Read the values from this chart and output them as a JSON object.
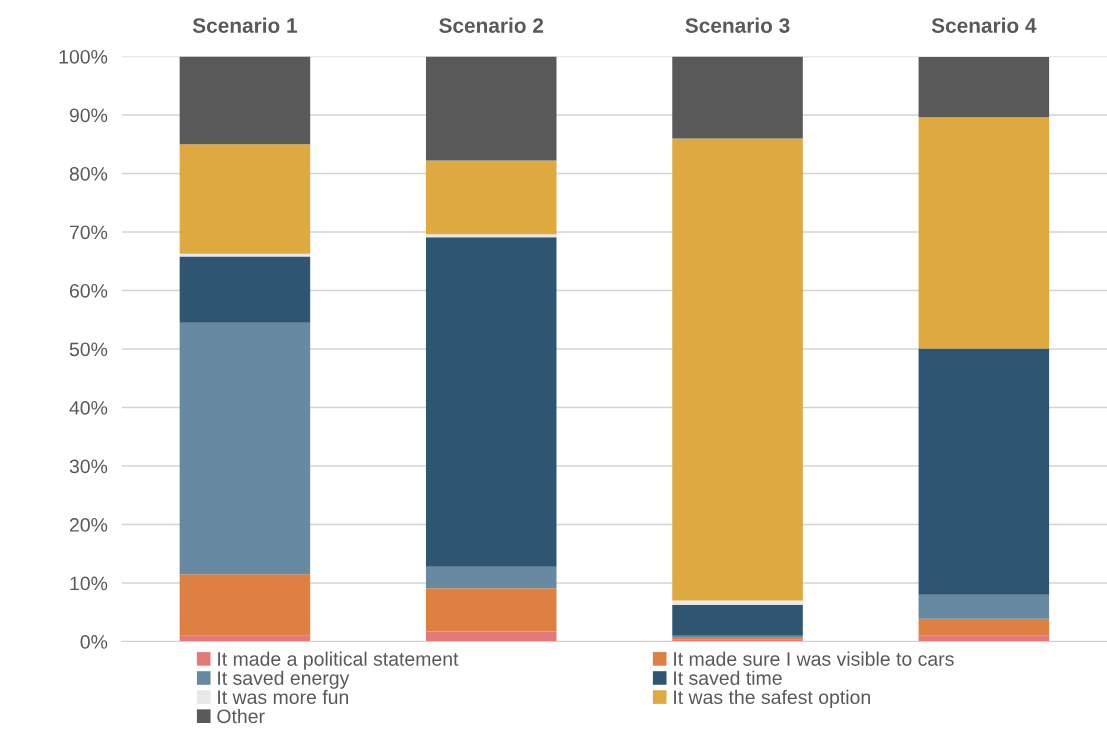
{
  "chart_data": {
    "type": "bar",
    "stacked": true,
    "categories": [
      "Scenario 1",
      "Scenario 2",
      "Scenario 3",
      "Scenario 4"
    ],
    "series": [
      {
        "name": "It made a political statement",
        "color": "#e27a7a",
        "values": [
          1.0,
          1.7,
          0.3,
          1.0
        ]
      },
      {
        "name": "It made sure I was visible to cars",
        "color": "#dd8042",
        "values": [
          10.5,
          7.4,
          0.5,
          2.9
        ]
      },
      {
        "name": "It saved energy",
        "color": "#6889a2",
        "values": [
          43.0,
          3.7,
          0.2,
          4.1
        ]
      },
      {
        "name": "It saved time",
        "color": "#2e5672",
        "values": [
          11.3,
          56.3,
          5.3,
          42.1
        ]
      },
      {
        "name": "It was more fun",
        "color": "#e8e8e8",
        "values": [
          0.5,
          0.5,
          0.7,
          null
        ]
      },
      {
        "name": "It was the safest option",
        "color": "#dea93e",
        "values": [
          18.7,
          12.6,
          79.0,
          39.5
        ]
      },
      {
        "name": "Other",
        "color": "#595959",
        "values": [
          15.0,
          17.8,
          14.0,
          10.3
        ]
      }
    ],
    "ylim": [
      0,
      100
    ],
    "yticks": [
      {
        "value": 0,
        "label": "0%"
      },
      {
        "value": 10,
        "label": "10%"
      },
      {
        "value": 20,
        "label": "20%"
      },
      {
        "value": 30,
        "label": "30%"
      },
      {
        "value": 40,
        "label": "40%"
      },
      {
        "value": 50,
        "label": "50%"
      },
      {
        "value": 60,
        "label": "60%"
      },
      {
        "value": 70,
        "label": "70%"
      },
      {
        "value": 80,
        "label": "80%"
      },
      {
        "value": 90,
        "label": "90%"
      },
      {
        "value": 100,
        "label": "100%"
      }
    ],
    "grid": "y",
    "legend": "bottom"
  }
}
